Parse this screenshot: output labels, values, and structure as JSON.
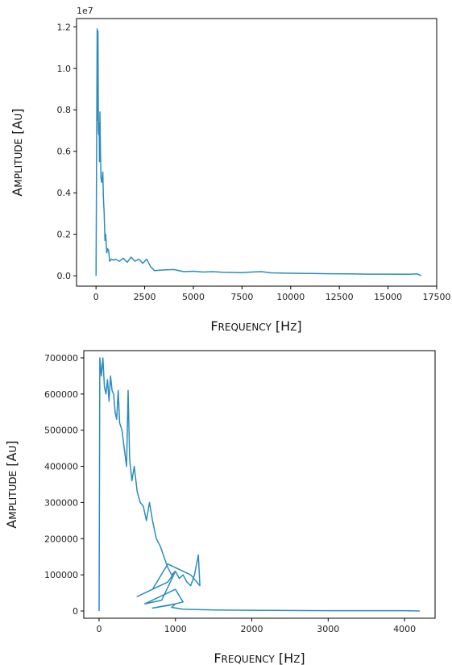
{
  "chart_data": [
    {
      "type": "line",
      "xlabel": "Frequency [Hz]",
      "ylabel": "Amplitude [au]",
      "y_offset_label": "1e7",
      "xlim": [
        -1000,
        17500
      ],
      "ylim": [
        -500000,
        12400000
      ],
      "xticks": [
        0,
        2500,
        5000,
        7500,
        10000,
        12500,
        15000,
        17500
      ],
      "yticks": [
        0.0,
        0.2,
        0.4,
        0.6,
        0.8,
        1.0,
        1.2
      ],
      "ytick_scale": 10000000,
      "color": "#2b8cbe",
      "series": [
        {
          "x": [
            0,
            60,
            80,
            100,
            120,
            140,
            160,
            180,
            200,
            230,
            260,
            290,
            320,
            350,
            380,
            420,
            460,
            500,
            550,
            600,
            650,
            700,
            800,
            900,
            1000,
            1200,
            1400,
            1600,
            1800,
            2000,
            2200,
            2400,
            2600,
            2800,
            3000,
            3500,
            4000,
            4500,
            5000,
            5500,
            6000,
            6500,
            7000,
            7500,
            8000,
            8500,
            9000,
            9500,
            10000,
            11000,
            12000,
            13000,
            14000,
            15000,
            16000,
            16500,
            16700
          ],
          "y": [
            0,
            11900000,
            7500000,
            11800000,
            7000000,
            6800000,
            7400000,
            5500000,
            7900000,
            6000000,
            4700000,
            4500000,
            4700000,
            5000000,
            3800000,
            3000000,
            1700000,
            2000000,
            1100000,
            1300000,
            1200000,
            700000,
            800000,
            750000,
            800000,
            700000,
            850000,
            650000,
            900000,
            700000,
            800000,
            600000,
            800000,
            450000,
            250000,
            280000,
            300000,
            200000,
            220000,
            180000,
            200000,
            170000,
            160000,
            150000,
            180000,
            200000,
            140000,
            130000,
            120000,
            110000,
            100000,
            90000,
            80000,
            80000,
            70000,
            90000,
            0
          ]
        }
      ]
    },
    {
      "type": "line",
      "xlabel": "Frequency [Hz]",
      "ylabel": "Amplitude [au]",
      "xlim": [
        -200,
        4400
      ],
      "ylim": [
        -20000,
        720000
      ],
      "xticks": [
        0,
        1000,
        2000,
        3000,
        4000
      ],
      "yticks": [
        0,
        100000,
        200000,
        300000,
        400000,
        500000,
        600000,
        700000
      ],
      "color": "#2b8cbe",
      "series": [
        {
          "x": [
            0,
            10,
            30,
            50,
            70,
            90,
            110,
            130,
            150,
            170,
            190,
            210,
            230,
            250,
            270,
            300,
            330,
            360,
            380,
            400,
            430,
            460,
            500,
            540,
            580,
            620,
            660,
            700,
            750,
            800,
            850,
            900,
            950,
            1000,
            1050,
            1100,
            1150,
            1200,
            1250,
            1300,
            1320,
            1200,
            900,
            700,
            500,
            900,
            1000,
            820,
            600,
            1000,
            1100,
            900,
            700,
            1000,
            950,
            1100,
            1500,
            2000,
            3000,
            4000,
            4200
          ],
          "y": [
            0,
            700000,
            650000,
            700000,
            620000,
            600000,
            640000,
            580000,
            650000,
            610000,
            600000,
            550000,
            530000,
            610000,
            520000,
            500000,
            450000,
            400000,
            610000,
            420000,
            360000,
            400000,
            330000,
            300000,
            290000,
            250000,
            300000,
            250000,
            200000,
            180000,
            150000,
            120000,
            100000,
            110000,
            90000,
            100000,
            80000,
            70000,
            100000,
            155000,
            70000,
            100000,
            130000,
            60000,
            40000,
            80000,
            110000,
            30000,
            20000,
            60000,
            25000,
            15000,
            8000,
            20000,
            10000,
            5000,
            3000,
            2000,
            1000,
            1000,
            0
          ]
        }
      ]
    }
  ]
}
